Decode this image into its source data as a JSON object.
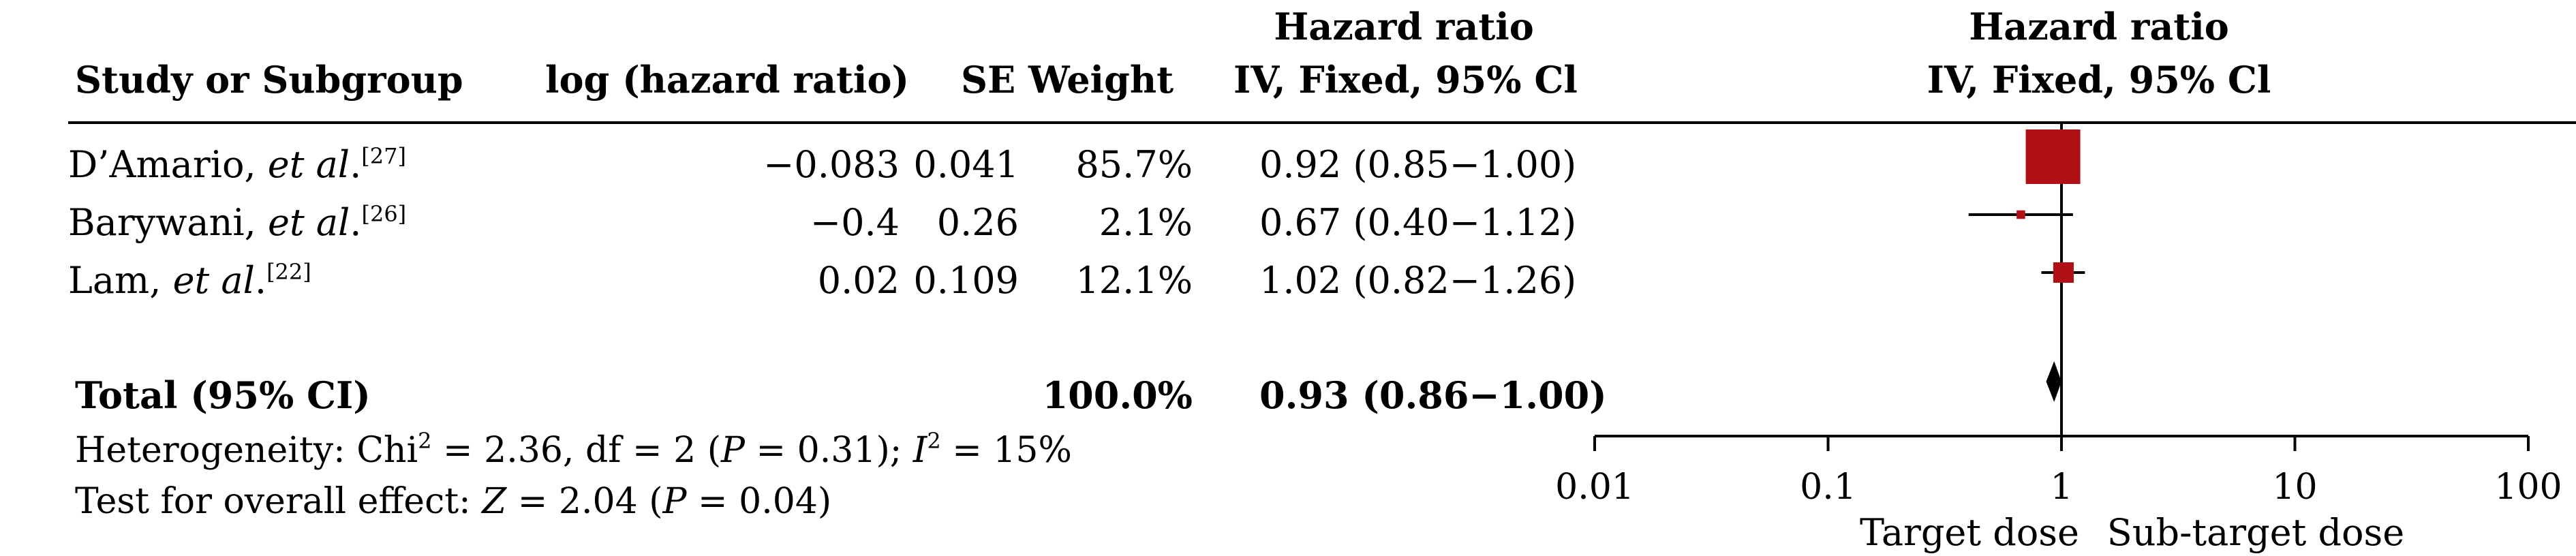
{
  "header": {
    "study": "Study or Subgroup",
    "logHR": "log (hazard ratio)",
    "se_weight": "SE Weight",
    "hr_title": "Hazard ratio",
    "hr_sub": "IV, Fixed, 95% Cl",
    "plot_title": "Hazard ratio",
    "plot_sub": "IV, Fixed, 95% Cl"
  },
  "studies": [
    {
      "name": "D’Amario, ",
      "etal": "et al",
      "dot": ".",
      "ref": "[27]",
      "logHR": "−0.083",
      "se": "0.041",
      "weight": "85.7%",
      "ci": "0.92 (0.85−1.00)"
    },
    {
      "name": "Barywani, ",
      "etal": "et al",
      "dot": ".",
      "ref": "[26]",
      "logHR": "−0.4",
      "se": "0.26",
      "weight": "2.1%",
      "ci": "0.67 (0.40−1.12)"
    },
    {
      "name": "Lam, ",
      "etal": "et al",
      "dot": ".",
      "ref": "[22]",
      "logHR": "0.02",
      "se": "0.109",
      "weight": "12.1%",
      "ci": "1.02 (0.82−1.26)"
    }
  ],
  "total": {
    "label": "Total (95% CI)",
    "weight": "100.0%",
    "ci": "0.93 (0.86−1.00)"
  },
  "heterogeneity": {
    "a": "Heterogeneity: Chi",
    "a_sup": "2",
    "b": " = 2.36, df = 2 (",
    "p": "P",
    "c": " = 0.31); ",
    "i": "I",
    "i_sup": "2",
    "d": " = 15%"
  },
  "overall": {
    "a": "Test for overall effect: ",
    "z": "Z",
    "b": " = 2.04 (",
    "p": "P",
    "c": " = 0.04)"
  },
  "axis": {
    "left_label": "Target dose",
    "right_label": "Sub-target dose"
  },
  "colors": {
    "marker": "#b11116",
    "line": "#000000"
  },
  "chart_data": {
    "type": "forest",
    "scale": "log",
    "xlim": [
      0.01,
      100
    ],
    "ticks": [
      0.01,
      0.1,
      1,
      10,
      100
    ],
    "tick_labels": [
      "0.01",
      "0.1",
      "1",
      "10",
      "100"
    ],
    "reference_line": 1,
    "series": [
      {
        "study": "D’Amario, et al.",
        "hr": 0.92,
        "ci_low": 0.85,
        "ci_high": 1.0,
        "weight": 85.7
      },
      {
        "study": "Barywani, et al.",
        "hr": 0.67,
        "ci_low": 0.4,
        "ci_high": 1.12,
        "weight": 2.1
      },
      {
        "study": "Lam, et al.",
        "hr": 1.02,
        "ci_low": 0.82,
        "ci_high": 1.26,
        "weight": 12.1
      }
    ],
    "pooled": {
      "hr": 0.93,
      "ci_low": 0.86,
      "ci_high": 1.0
    }
  }
}
